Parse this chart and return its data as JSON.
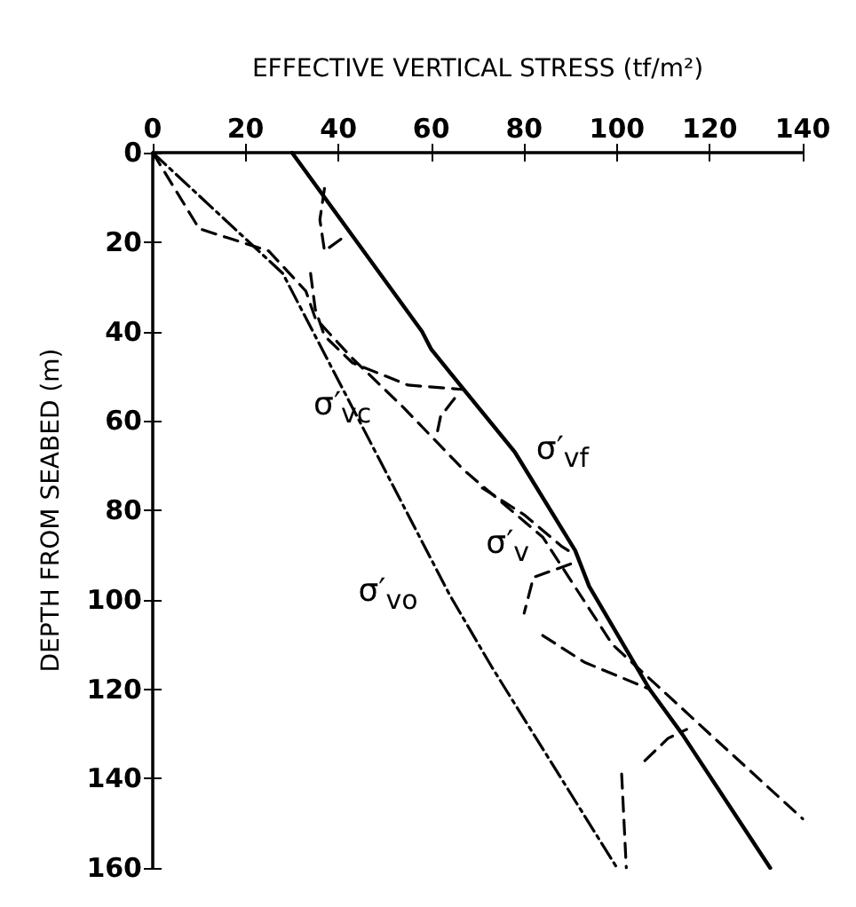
{
  "chart_data": {
    "type": "line",
    "xlabel": "EFFECTIVE VERTICAL STRESS (tf/m²)",
    "ylabel": "DEPTH FROM SEABED (m)",
    "xlim": [
      0,
      140
    ],
    "xticks": [
      0,
      20,
      40,
      60,
      80,
      100,
      120,
      140
    ],
    "ylim": [
      160,
      0
    ],
    "yticks": [
      0,
      20,
      40,
      60,
      80,
      100,
      120,
      140,
      160
    ],
    "grid": false,
    "legend": false,
    "marker": "none",
    "series": [
      {
        "name": "σ′$_{v}$",
        "color": "#000000",
        "line_style": "dashed",
        "x": [
          37,
          36,
          37,
          41,
          null,
          34,
          35,
          37,
          43,
          55,
          67,
          null,
          65,
          62,
          61,
          null,
          71,
          80,
          88,
          91,
          null,
          90,
          82,
          80,
          null,
          84,
          93,
          100,
          107,
          null,
          106,
          111,
          115,
          null,
          101,
          102
        ],
        "values": [
          8,
          15,
          22,
          19,
          null,
          27,
          35,
          41,
          47,
          52,
          53,
          null,
          55,
          59,
          64,
          null,
          75,
          81,
          88,
          90,
          null,
          92,
          95,
          103,
          null,
          108,
          114,
          117,
          120,
          null,
          136,
          131,
          129,
          null,
          139,
          160
        ]
      },
      {
        "name": "σ′$_{vf}$",
        "color": "#000000",
        "line_style": "solid",
        "x": [
          30,
          44,
          58,
          60,
          67,
          78,
          91,
          94,
          107,
          114,
          133
        ],
        "values": [
          0,
          20,
          40,
          44,
          53,
          67,
          89,
          97,
          120,
          130,
          160
        ]
      },
      {
        "name": "σ′$_{vc}$",
        "color": "#000000",
        "line_style": "dashed",
        "x": [
          0,
          10,
          25,
          33,
          35,
          43,
          54,
          67,
          84,
          99,
          121,
          140
        ],
        "values": [
          0,
          17,
          22,
          31,
          37,
          46,
          57,
          71,
          86,
          110,
          131,
          149
        ]
      },
      {
        "name": "σ′$_{vo}$",
        "color": "#000000",
        "line_style": "dashdot",
        "x": [
          0,
          28,
          64,
          73,
          100
        ],
        "values": [
          0,
          27,
          99,
          115,
          160
        ]
      }
    ]
  }
}
